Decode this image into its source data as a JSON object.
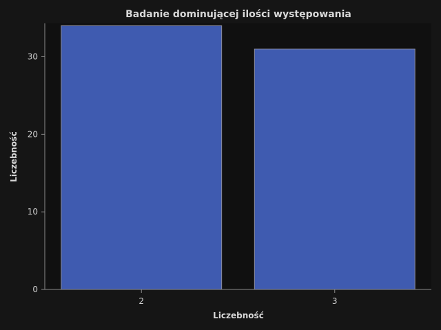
{
  "colors": {
    "background": "#151515",
    "plot_background": "#101010",
    "bar_fill": "#3f5bb0",
    "bar_edge": "#8c8c9c",
    "axis": "#8a8a8a",
    "text": "#d8d8d8"
  },
  "chart_data": {
    "type": "bar",
    "title": "Badanie dominującej ilości występowania",
    "xlabel": "Liczebność",
    "ylabel": "Liczebność",
    "categories": [
      "2",
      "3"
    ],
    "values": [
      34,
      31
    ],
    "ylim": [
      0,
      34.3
    ],
    "yticks": [
      0,
      10,
      20,
      30
    ],
    "grid": false,
    "legend": "none"
  }
}
